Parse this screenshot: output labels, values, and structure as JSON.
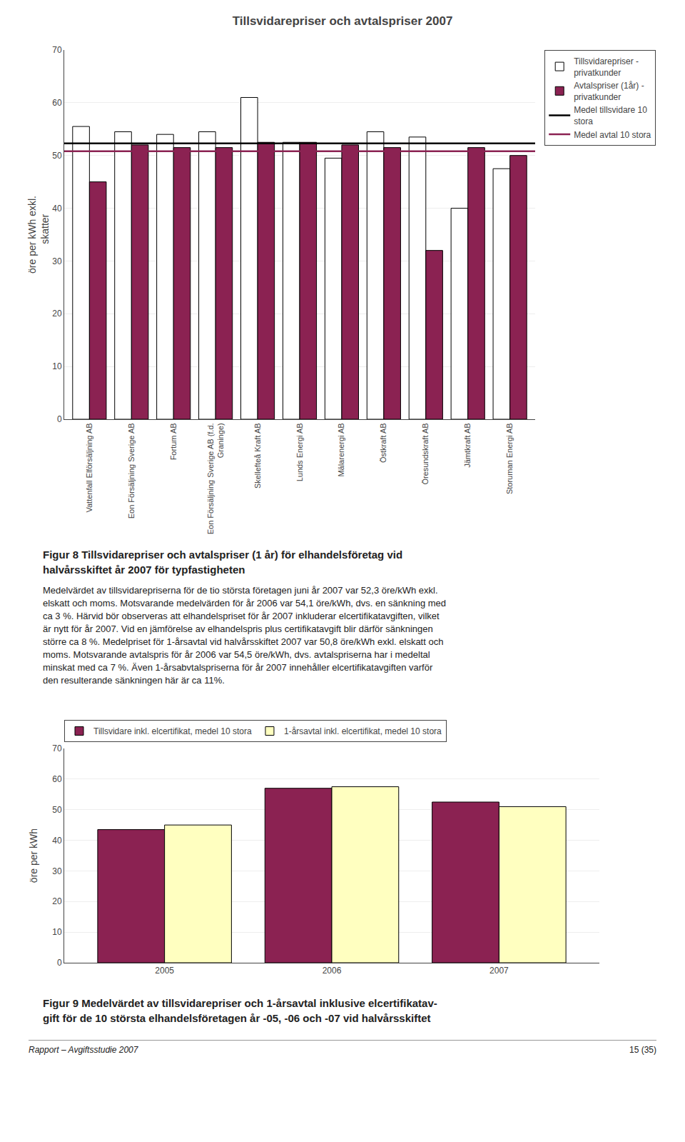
{
  "chart_data": [
    {
      "type": "bar",
      "title": "Tillsvidarepriser och avtalspriser 2007",
      "ylabel": "öre per kWh exkl.\n    skatter",
      "categories": [
        "Vattenfall Elförsäljning AB",
        "Eon Försäljning Sverige AB",
        "Fortum AB",
        "Eon Försäljning Sverige AB (f.d.\nGraninge)",
        "Skellefteå Kraft AB",
        "Lunds Energi AB",
        "Mälarenergi AB",
        "Östkraft AB",
        "Öresundskraft AB",
        "Jämtkraft AB",
        "Storuman Energi AB"
      ],
      "series": [
        {
          "name": "Tillsvidarepriser -\nprivatkunder",
          "color": "#FFFFFF",
          "values": [
            55.5,
            54.5,
            54.0,
            54.5,
            61.0,
            52.5,
            49.5,
            54.5,
            53.5,
            40.0,
            47.5
          ]
        },
        {
          "name": "Avtalspriser (1år) -\nprivatkunder",
          "color": "#8B2252",
          "values": [
            45.0,
            52.0,
            51.5,
            51.5,
            52.5,
            52.5,
            52.0,
            51.5,
            32.0,
            51.5,
            50.0
          ]
        },
        {
          "name": "Medel tillsvidare 10\nstora",
          "type": "hline",
          "color": "#000000",
          "value": 52.3
        },
        {
          "name": "Medel avtal 10 stora",
          "type": "hline",
          "color": "#8B2252",
          "value": 50.8
        }
      ],
      "ylim": [
        0,
        70
      ],
      "yticks": [
        0,
        10,
        20,
        30,
        40,
        50,
        60,
        70
      ],
      "grid": true,
      "legend": "right",
      "annotations": [
        "Figur 8 Tillsvidarepriser och avtalspriser (1 år) för elhandelsföretag vid",
        "halvårsskiftet år 2007 för typfastigheten",
        "Medelvärdet av tillsvidarepriserna för de tio största företagen juni år 2007 var 52,3 öre/kWh exkl.",
        "elskatt och moms. Motsvarande medelvärden för år 2006 var 54,1 öre/kWh, dvs. en sänkning med",
        "ca 3 %. Härvid bör observeras att elhandelspriset för år 2007 inkluderar elcertifikatavgiften, vilket",
        "är nytt för år 2007. Vid en jämförelse av elhandelspris plus certifikatavgift blir därför sänkningen",
        "större ca 8 %. Medelpriset för 1-årsavtal vid halvårsskiftet 2007 var 50,8 öre/kWh exkl. elskatt och",
        "moms. Motsvarande avtalspris för år 2006 var 54,5 öre/kWh, dvs. avtalspriserna har i medeltal",
        "minskat med ca 7 %. Även 1-årsabvtalspriserna för år 2007 innehåller elcertifikatavgiften varför",
        "den resulterande sänkningen här är ca 11%."
      ]
    },
    {
      "type": "bar",
      "ylabel": "öre per kWh",
      "categories": [
        "2005",
        "2006",
        "2007"
      ],
      "series": [
        {
          "name": "Tillsvidare inkl. elcertifikat, medel 10 stora",
          "color": "#8B2252",
          "values": [
            43.5,
            57.0,
            52.5
          ]
        },
        {
          "name": "1-årsavtal inkl. elcertifikat, medel 10 stora",
          "color": "#FFFFC0",
          "values": [
            45.0,
            57.5,
            51.0
          ]
        }
      ],
      "ylim": [
        0,
        70
      ],
      "yticks": [
        0,
        10,
        20,
        30,
        40,
        50,
        60,
        70
      ],
      "grid": true,
      "legend": "top",
      "annotations": [
        "Figur 9 Medelvärdet av tillsvidarepriser och 1-årsavtal inklusive elcertifikatav-",
        "gift för de 10 största elhandelsföretagen år -05, -06 och -07 vid halvårsskiftet",
        "Rapport – Avgiftsstudie 2007",
        "15 (35)"
      ]
    }
  ]
}
